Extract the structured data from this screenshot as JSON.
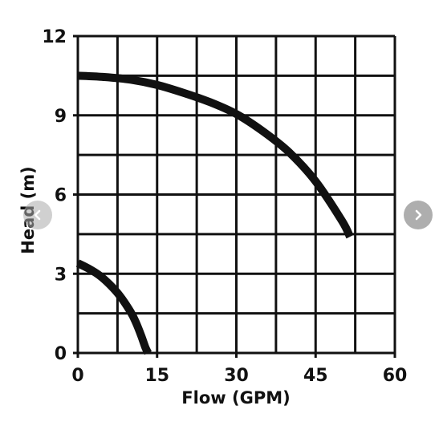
{
  "chart_data": {
    "type": "line",
    "title": "",
    "xlabel": "Flow (GPM)",
    "ylabel": "Head (m)",
    "xlim": [
      0,
      60
    ],
    "ylim": [
      0,
      12
    ],
    "xticks": [
      0,
      15,
      30,
      45,
      60
    ],
    "yticks": [
      0,
      3,
      6,
      9,
      12
    ],
    "x_minor_gridlines": [
      7.5,
      22.5,
      37.5,
      52.5
    ],
    "y_minor_gridlines": [
      1.5,
      4.5,
      7.5,
      10.5
    ],
    "grid": true,
    "line_color": "#111111",
    "series": [
      {
        "x": [
          0,
          5,
          10,
          15,
          20,
          25,
          30,
          35,
          40,
          45,
          50,
          51.5
        ],
        "y": [
          10.5,
          10.45,
          10.35,
          10.15,
          9.85,
          9.5,
          9.05,
          8.4,
          7.6,
          6.5,
          5.0,
          4.4
        ]
      },
      {
        "x": [
          0,
          2,
          4,
          6,
          8,
          10,
          11,
          12,
          12.8,
          13.3
        ],
        "y": [
          3.4,
          3.2,
          2.95,
          2.6,
          2.15,
          1.55,
          1.15,
          0.65,
          0.2,
          0
        ]
      }
    ]
  },
  "nav": {
    "prev_icon": "chevron-left-icon",
    "next_icon": "chevron-right-icon"
  }
}
